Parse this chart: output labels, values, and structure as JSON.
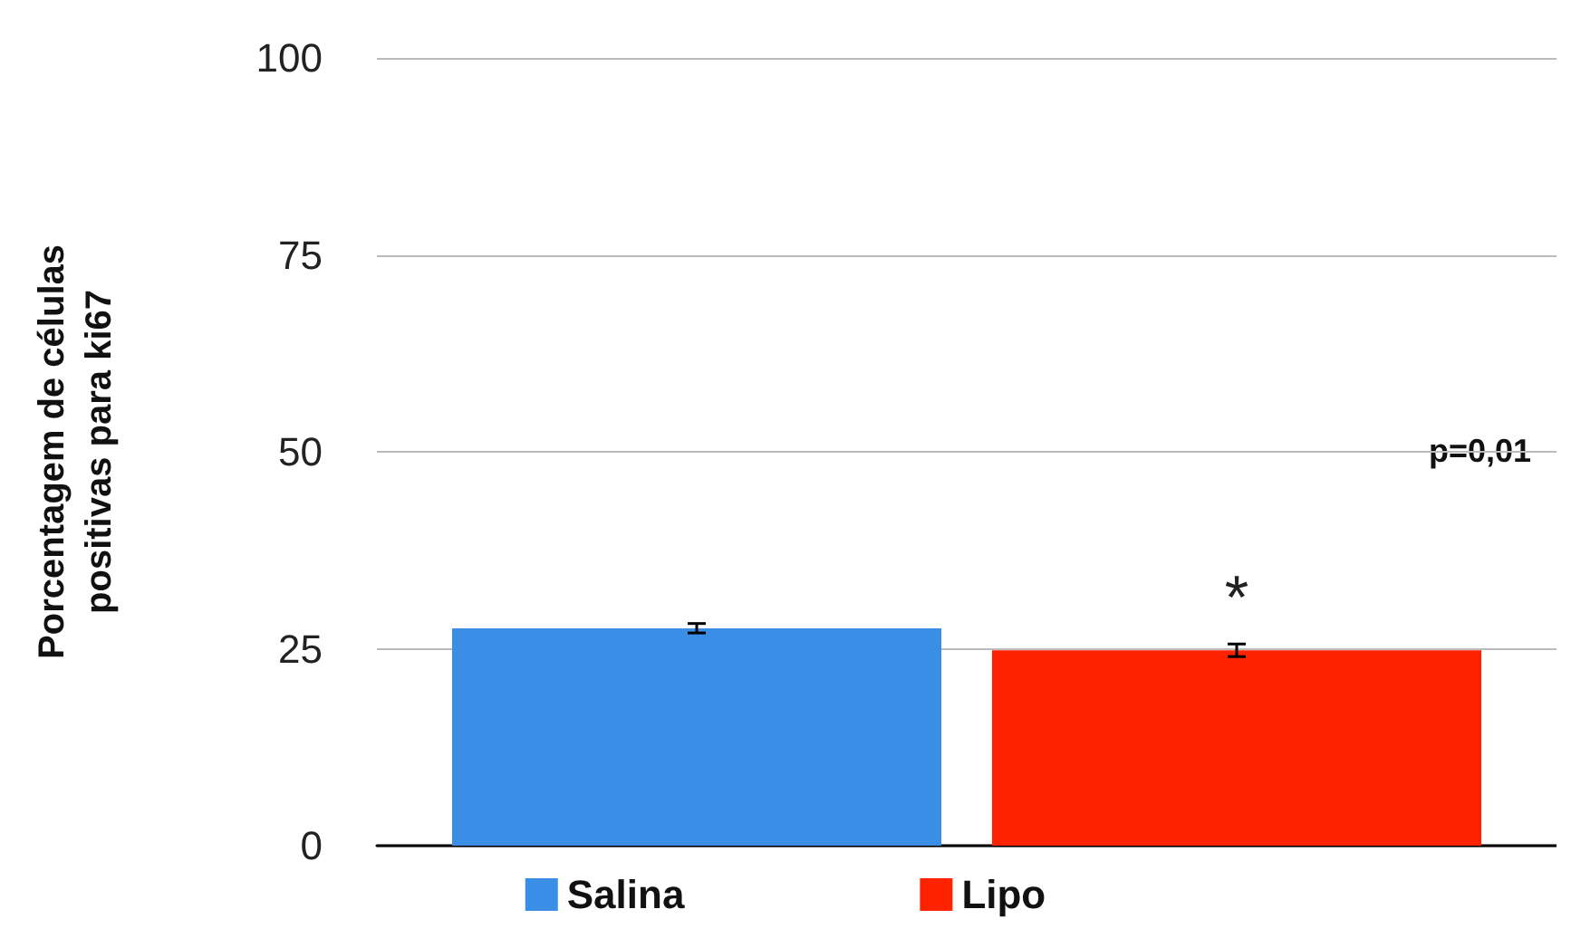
{
  "chart_data": {
    "type": "bar",
    "ylabel": "Porcentagem de células\npositivas para ki67",
    "categories": [
      null
    ],
    "series": [
      {
        "name": "Salina",
        "color": "#3a8ee6",
        "values": [
          27.6
        ],
        "errors": [
          0.6
        ]
      },
      {
        "name": "Lipo",
        "color": "#ff2200",
        "values": [
          24.8
        ],
        "errors": [
          0.8
        ]
      }
    ],
    "ylim": [
      0,
      100
    ],
    "yticks": [
      0,
      25,
      50,
      75,
      100
    ],
    "grid": "y",
    "legend": "bottom",
    "annotations": [
      "p=0,01",
      "*"
    ]
  }
}
